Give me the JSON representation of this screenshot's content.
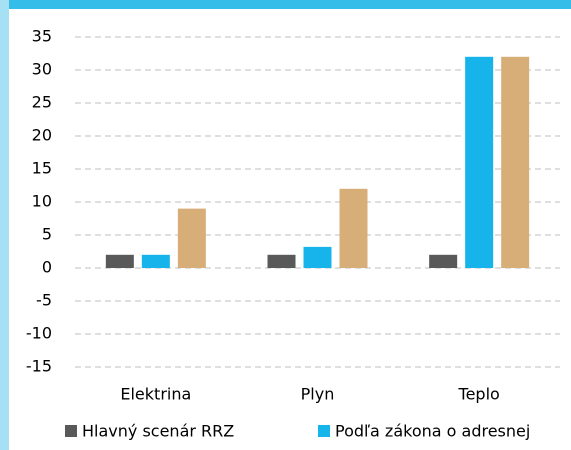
{
  "chart_data": {
    "type": "bar",
    "categories": [
      "Elektrina",
      "Plyn",
      "Teplo"
    ],
    "series": [
      {
        "name": "Hlavný scenár RRZ",
        "color": "#595959",
        "values": [
          2,
          2,
          2
        ]
      },
      {
        "name": "Podľa zákona o adresnej",
        "color": "#16b4ea",
        "values": [
          2,
          3.2,
          32
        ]
      },
      {
        "color": "#d8ae78",
        "values": [
          9,
          12,
          32
        ]
      }
    ],
    "ylim": [
      -15,
      35
    ],
    "yticks": [
      -15,
      -10,
      -5,
      0,
      5,
      10,
      15,
      20,
      25,
      30,
      35
    ],
    "grid": true
  }
}
